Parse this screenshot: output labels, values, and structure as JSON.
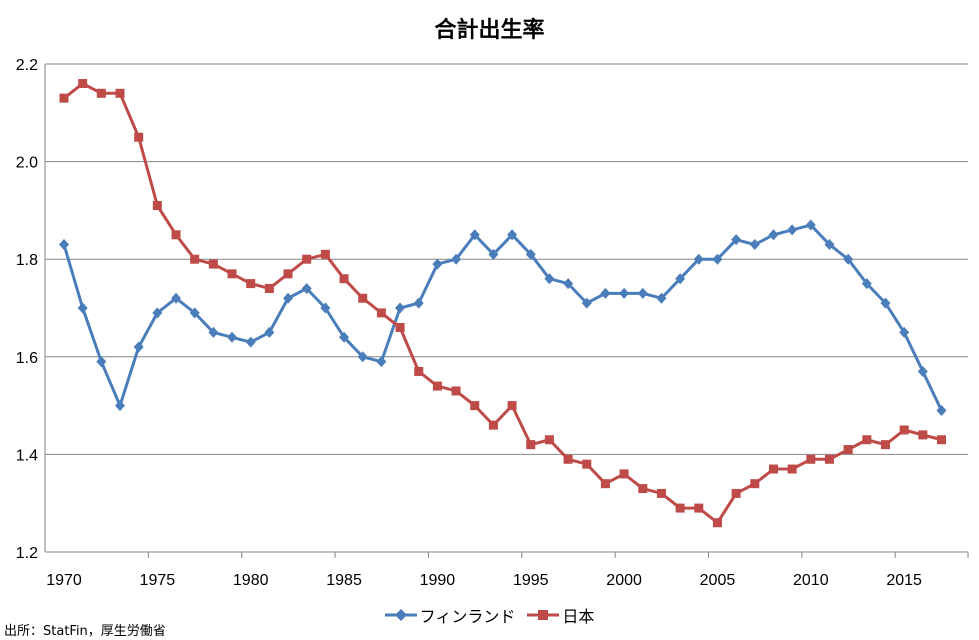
{
  "chart_data": {
    "type": "line",
    "title": "合計出生率",
    "xlabel": "",
    "ylabel": "",
    "xlim": [
      1970,
      2017
    ],
    "ylim": [
      1.2,
      2.2
    ],
    "yticks": [
      "1.2",
      "1.4",
      "1.6",
      "1.8",
      "2.0",
      "2.2"
    ],
    "xticks": [
      "1970",
      "1975",
      "1980",
      "1985",
      "1990",
      "1995",
      "2000",
      "2005",
      "2010",
      "2015"
    ],
    "grid": "horizontal",
    "legend": "bottom",
    "x": [
      1970,
      1971,
      1972,
      1973,
      1974,
      1975,
      1976,
      1977,
      1978,
      1979,
      1980,
      1981,
      1982,
      1983,
      1984,
      1985,
      1986,
      1987,
      1988,
      1989,
      1990,
      1991,
      1992,
      1993,
      1994,
      1995,
      1996,
      1997,
      1998,
      1999,
      2000,
      2001,
      2002,
      2003,
      2004,
      2005,
      2006,
      2007,
      2008,
      2009,
      2010,
      2011,
      2012,
      2013,
      2014,
      2015,
      2016,
      2017
    ],
    "series": [
      {
        "name": "フィンランド",
        "color": "#4a7ebb",
        "marker": "diamond",
        "values": [
          1.83,
          1.7,
          1.59,
          1.5,
          1.62,
          1.69,
          1.72,
          1.69,
          1.65,
          1.64,
          1.63,
          1.65,
          1.72,
          1.74,
          1.7,
          1.64,
          1.6,
          1.59,
          1.7,
          1.71,
          1.79,
          1.8,
          1.85,
          1.81,
          1.85,
          1.81,
          1.76,
          1.75,
          1.71,
          1.73,
          1.73,
          1.73,
          1.72,
          1.76,
          1.8,
          1.8,
          1.84,
          1.83,
          1.85,
          1.86,
          1.87,
          1.83,
          1.8,
          1.75,
          1.71,
          1.65,
          1.57,
          1.49
        ]
      },
      {
        "name": "日本",
        "color": "#be4b48",
        "marker": "square",
        "values": [
          2.13,
          2.16,
          2.14,
          2.14,
          2.05,
          1.91,
          1.85,
          1.8,
          1.79,
          1.77,
          1.75,
          1.74,
          1.77,
          1.8,
          1.81,
          1.76,
          1.72,
          1.69,
          1.66,
          1.57,
          1.54,
          1.53,
          1.5,
          1.46,
          1.5,
          1.42,
          1.43,
          1.39,
          1.38,
          1.34,
          1.36,
          1.33,
          1.32,
          1.29,
          1.29,
          1.26,
          1.32,
          1.34,
          1.37,
          1.37,
          1.39,
          1.39,
          1.41,
          1.43,
          1.42,
          1.45,
          1.44,
          1.43
        ]
      }
    ]
  },
  "source_note": "出所：StatFin，厚生労働省"
}
